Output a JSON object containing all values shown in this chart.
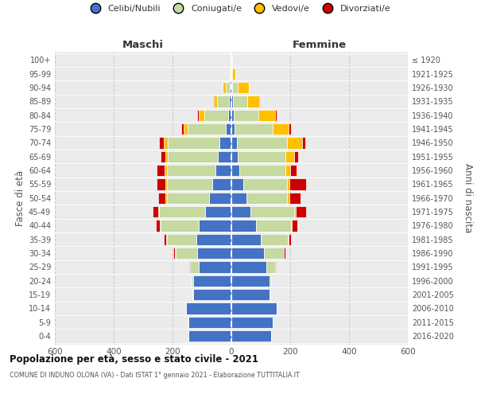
{
  "age_groups": [
    "0-4",
    "5-9",
    "10-14",
    "15-19",
    "20-24",
    "25-29",
    "30-34",
    "35-39",
    "40-44",
    "45-49",
    "50-54",
    "55-59",
    "60-64",
    "65-69",
    "70-74",
    "75-79",
    "80-84",
    "85-89",
    "90-94",
    "95-99",
    "100+"
  ],
  "birth_years": [
    "2016-2020",
    "2011-2015",
    "2006-2010",
    "2001-2005",
    "1996-2000",
    "1991-1995",
    "1986-1990",
    "1981-1985",
    "1976-1980",
    "1971-1975",
    "1966-1970",
    "1961-1965",
    "1956-1960",
    "1951-1955",
    "1946-1950",
    "1941-1945",
    "1936-1940",
    "1931-1935",
    "1926-1930",
    "1921-1925",
    "≤ 1920"
  ],
  "colors": {
    "celibi": "#4472c4",
    "coniugati": "#c5d9a0",
    "vedovi": "#ffc000",
    "divorziati": "#cc0000"
  },
  "maschi": {
    "celibi": [
      145,
      145,
      155,
      130,
      130,
      110,
      115,
      120,
      110,
      90,
      75,
      65,
      55,
      45,
      40,
      18,
      12,
      8,
      5,
      2,
      2
    ],
    "coniugati": [
      0,
      0,
      0,
      2,
      5,
      30,
      75,
      100,
      130,
      155,
      145,
      155,
      165,
      170,
      175,
      130,
      80,
      40,
      15,
      2,
      0
    ],
    "vedovi": [
      0,
      0,
      0,
      0,
      0,
      1,
      1,
      1,
      2,
      3,
      3,
      5,
      8,
      10,
      15,
      15,
      20,
      12,
      10,
      2,
      0
    ],
    "divorziati": [
      0,
      0,
      0,
      0,
      1,
      2,
      5,
      8,
      15,
      20,
      25,
      30,
      25,
      15,
      15,
      8,
      5,
      2,
      0,
      0,
      0
    ]
  },
  "femmine": {
    "celibi": [
      135,
      140,
      155,
      130,
      130,
      120,
      110,
      100,
      85,
      65,
      50,
      40,
      28,
      22,
      18,
      10,
      8,
      5,
      3,
      1,
      1
    ],
    "coniugati": [
      0,
      0,
      0,
      2,
      5,
      28,
      68,
      92,
      118,
      148,
      140,
      148,
      155,
      162,
      172,
      130,
      85,
      48,
      18,
      3,
      0
    ],
    "vedovi": [
      0,
      0,
      0,
      0,
      0,
      0,
      1,
      2,
      3,
      5,
      8,
      10,
      18,
      30,
      50,
      55,
      55,
      42,
      38,
      10,
      2
    ],
    "divorziati": [
      0,
      0,
      0,
      0,
      1,
      2,
      5,
      10,
      18,
      35,
      38,
      55,
      20,
      12,
      10,
      8,
      5,
      2,
      0,
      0,
      0
    ]
  },
  "title": "Popolazione per età, sesso e stato civile - 2021",
  "subtitle": "COMUNE DI INDUNO OLONA (VA) - Dati ISTAT 1° gennaio 2021 - Elaborazione TUTTITALIA.IT",
  "xlabel_maschi": "Maschi",
  "xlabel_femmine": "Femmine",
  "ylabel_left": "Fasce di età",
  "ylabel_right": "Anni di nascita",
  "xlim": 600,
  "legend_labels": [
    "Celibi/Nubili",
    "Coniugati/e",
    "Vedovi/e",
    "Divorziati/e"
  ],
  "bg_color": "#ebebeb",
  "grid_color": "#d0d0d0"
}
